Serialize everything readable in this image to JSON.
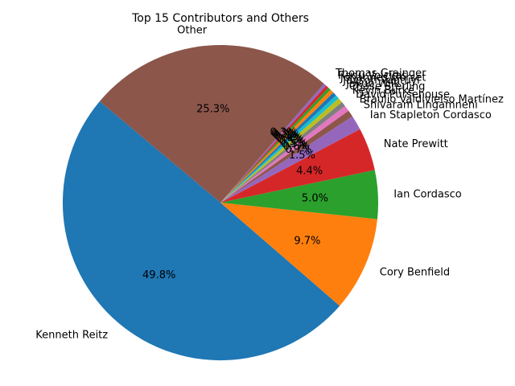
{
  "chart_data": {
    "type": "pie",
    "title": "Top 15 Contributors and Others",
    "start_angle_deg": 140,
    "direction": "counterclockwise",
    "slices": [
      {
        "label": "Kenneth Reitz",
        "value": 49.8,
        "pct_text": "49.8%",
        "color": "#1f77b4"
      },
      {
        "label": "Cory Benfield",
        "value": 9.7,
        "pct_text": "9.7%",
        "color": "#ff7f0e"
      },
      {
        "label": "Ian Cordasco",
        "value": 5.0,
        "pct_text": "5.0%",
        "color": "#2ca02c"
      },
      {
        "label": "Nate Prewitt",
        "value": 4.4,
        "pct_text": "4.4%",
        "color": "#d62728"
      },
      {
        "label": "Ian Stapleton Cordasco",
        "value": 1.5,
        "pct_text": "1.5%",
        "color": "#9467bd"
      },
      {
        "label": "Shivaram Lingamneni",
        "value": 0.7,
        "pct_text": "0.7%",
        "color": "#8c564b"
      },
      {
        "label": "Braulio Valdivielso Martínez",
        "value": 0.6,
        "pct_text": "0.6%",
        "color": "#e377c2"
      },
      {
        "label": "David Pursehouse",
        "value": 0.5,
        "pct_text": "0.5%",
        "color": "#7f7f7f"
      },
      {
        "label": "Kevin Burke",
        "value": 0.5,
        "pct_text": "0.5%",
        "color": "#bcbd22"
      },
      {
        "label": "Chase Sterling",
        "value": 0.4,
        "pct_text": "0.4%",
        "color": "#17becf"
      },
      {
        "label": "Jakub Wilk",
        "value": 0.4,
        "pct_text": "0.4%",
        "color": "#1f77b4"
      },
      {
        "label": "Jayson Vantuyl",
        "value": 0.4,
        "pct_text": "0.4%",
        "color": "#ff7f0e"
      },
      {
        "label": "Johannes Gorset",
        "value": 0.3,
        "pct_text": "0.3%",
        "color": "#2ca02c"
      },
      {
        "label": "Radu Voicilas",
        "value": 0.3,
        "pct_text": "0.3%",
        "color": "#d62728"
      },
      {
        "label": "Thomas Grainger",
        "value": 0.3,
        "pct_text": "0.3%",
        "color": "#9467bd"
      },
      {
        "label": "Other",
        "value": 25.3,
        "pct_text": "25.3%",
        "color": "#8c564b"
      }
    ]
  }
}
